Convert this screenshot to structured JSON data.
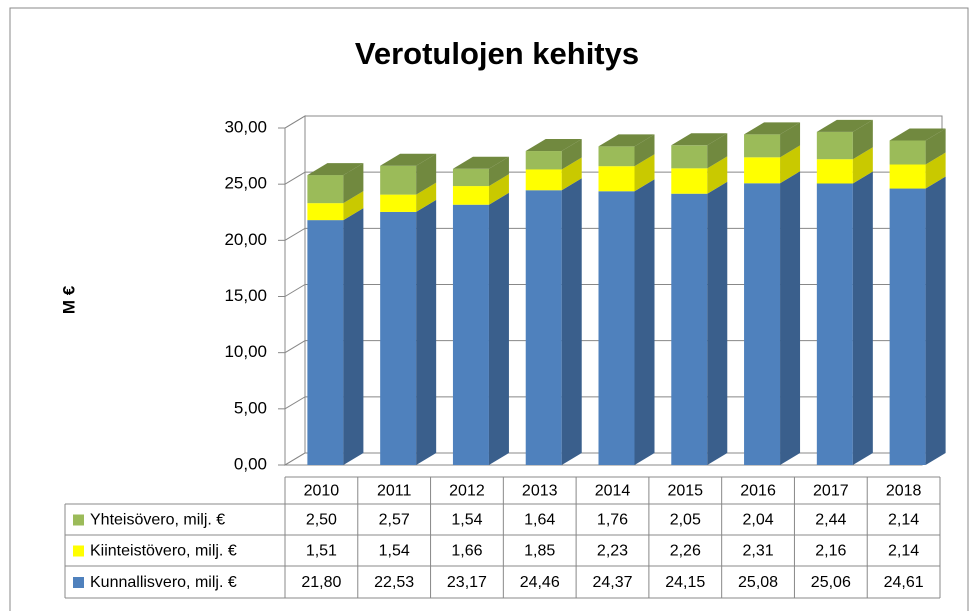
{
  "chart_data": {
    "type": "bar3d_stacked",
    "title": "Verotulojen kehitys",
    "ylabel": "M €",
    "categories": [
      "2010",
      "2011",
      "2012",
      "2013",
      "2014",
      "2015",
      "2016",
      "2017",
      "2018"
    ],
    "series": [
      {
        "name": "Kunnallisvero, milj. €",
        "color": "#4f81bd",
        "side_color": "#3a5f8c",
        "values": [
          21.8,
          22.53,
          23.17,
          24.46,
          24.37,
          24.15,
          25.08,
          25.06,
          24.61
        ],
        "value_labels": [
          "21,80",
          "22,53",
          "23,17",
          "24,46",
          "24,37",
          "24,15",
          "25,08",
          "25,06",
          "24,61"
        ]
      },
      {
        "name": "Kiinteistövero, milj. €",
        "color": "#ffff00",
        "side_color": "#c9c900",
        "values": [
          1.51,
          1.54,
          1.66,
          1.85,
          2.23,
          2.26,
          2.31,
          2.16,
          2.14
        ],
        "value_labels": [
          "1,51",
          "1,54",
          "1,66",
          "1,85",
          "2,23",
          "2,26",
          "2,31",
          "2,16",
          "2,14"
        ]
      },
      {
        "name": "Yhteisövero, milj. €",
        "color": "#9bbb59",
        "side_color": "#71893f",
        "values": [
          2.5,
          2.57,
          1.54,
          1.64,
          1.76,
          2.05,
          2.04,
          2.44,
          2.14
        ],
        "value_labels": [
          "2,50",
          "2,57",
          "1,54",
          "1,64",
          "1,76",
          "2,05",
          "2,04",
          "2,44",
          "2,14"
        ]
      }
    ],
    "ylim": [
      0,
      30
    ],
    "yticks": [
      {
        "value": 0,
        "label": "0,00"
      },
      {
        "value": 5,
        "label": "5,00"
      },
      {
        "value": 10,
        "label": "10,00"
      },
      {
        "value": 15,
        "label": "15,00"
      },
      {
        "value": 20,
        "label": "20,00"
      },
      {
        "value": 25,
        "label": "25,00"
      },
      {
        "value": 30,
        "label": "30,00"
      }
    ],
    "grid": true,
    "data_table": true
  }
}
